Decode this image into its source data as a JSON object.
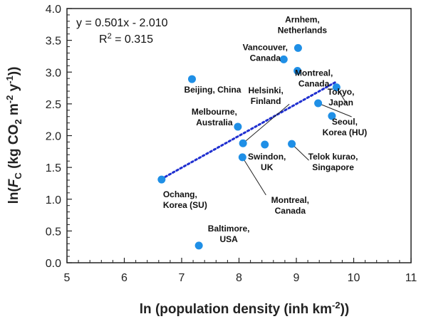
{
  "chart_data": {
    "type": "scatter",
    "xlabel_prefix": "ln (population density (inh km",
    "xlabel_sup": "-2",
    "xlabel_suffix": "))",
    "ylabel_parts": {
      "a": "ln(",
      "b": "F",
      "c": "C",
      "d": " (kg CO",
      "e": "2",
      "f": " m",
      "g": "-2",
      "h": " y",
      "i": "-1",
      "j": "))"
    },
    "xlim": [
      5,
      11
    ],
    "ylim": [
      0.0,
      4.0
    ],
    "xticks": [
      "5",
      "6",
      "7",
      "8",
      "9",
      "10",
      "11"
    ],
    "yticks": [
      "0.0",
      "0.5",
      "1.0",
      "1.5",
      "2.0",
      "2.5",
      "3.0",
      "3.5",
      "4.0"
    ],
    "marker_color": "#1f8fe6",
    "trend_color": "#1f2fd0",
    "equation": "y = 0.501x - 2.010",
    "r2_prefix": "R",
    "r2_sup": "2",
    "r2_value": " = 0.315",
    "trendline": {
      "x": [
        6.65,
        9.7
      ],
      "y": [
        1.32,
        2.85
      ]
    },
    "points": [
      {
        "x": 6.65,
        "y": 1.31,
        "label": [
          "Ochang,",
          "Korea (SU)"
        ]
      },
      {
        "x": 7.18,
        "y": 2.89,
        "label": [
          "Beijing,  China"
        ]
      },
      {
        "x": 7.3,
        "y": 0.27,
        "label": [
          "Baltimore,",
          "USA"
        ]
      },
      {
        "x": 7.98,
        "y": 2.14,
        "label": [
          "Melbourne,",
          "Australia"
        ]
      },
      {
        "x": 8.07,
        "y": 1.88,
        "label": [
          "Helsinki,",
          "Finland"
        ]
      },
      {
        "x": 8.06,
        "y": 1.66,
        "label": [
          "Montreal,",
          "Canada"
        ]
      },
      {
        "x": 8.45,
        "y": 1.86,
        "label": [
          "Swindon,",
          "UK"
        ]
      },
      {
        "x": 8.78,
        "y": 3.2,
        "label": [
          "Vancouver,",
          "Canada"
        ]
      },
      {
        "x": 8.92,
        "y": 1.87,
        "label": [
          "Telok kurao,",
          "Singapore"
        ]
      },
      {
        "x": 9.03,
        "y": 3.38,
        "label": [
          "Arnhem,",
          "Netherlands"
        ]
      },
      {
        "x": 9.02,
        "y": 3.02,
        "label": [
          "Montreal,",
          "Canada"
        ]
      },
      {
        "x": 9.38,
        "y": 2.51,
        "label": [
          "Tokyo,",
          "Japan"
        ]
      },
      {
        "x": 9.7,
        "y": 2.76,
        "label": []
      },
      {
        "x": 9.62,
        "y": 2.31,
        "label": [
          "Seoul,",
          "Korea (HU)"
        ]
      }
    ]
  }
}
